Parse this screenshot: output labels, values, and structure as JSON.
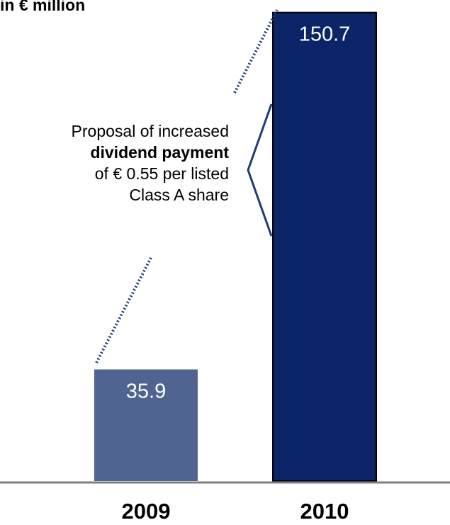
{
  "chart_data": {
    "type": "bar",
    "title": "",
    "unit_label": "in € million",
    "categories": [
      "2009",
      "2010"
    ],
    "values": [
      35.9,
      150.7
    ],
    "value_labels": [
      "35.9",
      "150.7"
    ],
    "ylim": [
      0,
      155
    ],
    "grid": false,
    "colors": [
      "#4f6491",
      "#0c2468"
    ],
    "annotation": {
      "line1": "Proposal of increased",
      "line2": "dividend payment",
      "line3": "of € 0.55 per listed",
      "line4": "Class A share"
    }
  }
}
